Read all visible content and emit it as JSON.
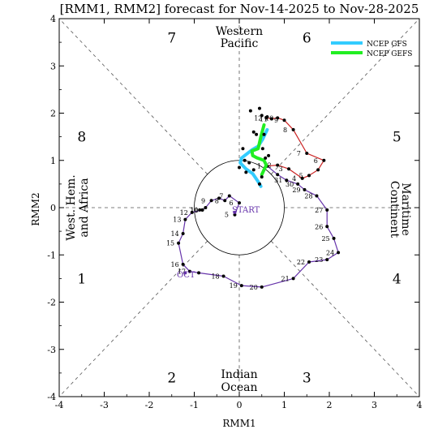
{
  "chart_data": {
    "type": "scatter",
    "title": "[RMM1, RMM2] forecast for Nov-14-2025 to Nov-28-2025",
    "xlabel": "RMM1",
    "ylabel": "RMM2",
    "xlim": [
      -4,
      4
    ],
    "ylim": [
      -4,
      4
    ],
    "xticks": [
      "-4",
      "-3",
      "-2",
      "-1",
      "0",
      "1",
      "2",
      "3",
      "4"
    ],
    "yticks": [
      "-4",
      "-3",
      "-2",
      "-1",
      "0",
      "1",
      "2",
      "3",
      "4"
    ],
    "grid": false,
    "legend_position": "top-right",
    "legend": [
      {
        "name": "NCEP GFS",
        "color": "#33ccff"
      },
      {
        "name": "NCEP GEFS",
        "color": "#22ee22"
      }
    ],
    "phase_labels": [
      {
        "label": "1",
        "x": -3.5,
        "y": -1.5
      },
      {
        "label": "2",
        "x": -1.5,
        "y": -3.6
      },
      {
        "label": "3",
        "x": 1.5,
        "y": -3.6
      },
      {
        "label": "4",
        "x": 3.5,
        "y": -1.5
      },
      {
        "label": "5",
        "x": 3.5,
        "y": 1.5
      },
      {
        "label": "6",
        "x": 1.5,
        "y": 3.6
      },
      {
        "label": "7",
        "x": -1.5,
        "y": 3.6
      },
      {
        "label": "8",
        "x": -3.5,
        "y": 1.5
      }
    ],
    "region_labels": {
      "top": [
        "Western",
        "Pacific"
      ],
      "bottom": [
        "Indian",
        "Ocean"
      ],
      "left": [
        "West. Hem.",
        "and Africa"
      ],
      "right": [
        "Maritime",
        "Continent"
      ]
    },
    "start_label": "START",
    "oct_label": "OCT",
    "series": [
      {
        "name": "observed-purple",
        "color": "#6633aa",
        "points": [
          [
            -0.1,
            -0.15
          ],
          [
            0.0,
            0.1
          ],
          [
            -0.22,
            0.25
          ],
          [
            -0.32,
            0.15
          ],
          [
            -0.45,
            0.2
          ],
          [
            -0.62,
            0.15
          ],
          [
            -0.75,
            0.0
          ],
          [
            -0.82,
            -0.05
          ],
          [
            -0.88,
            -0.05
          ],
          [
            -0.82,
            -0.05
          ],
          [
            -1.05,
            -0.1
          ],
          [
            -1.2,
            -0.25
          ],
          [
            -1.25,
            -0.55
          ],
          [
            -1.35,
            -0.75
          ],
          [
            -1.25,
            -1.2
          ],
          [
            -1.1,
            -1.35
          ],
          [
            -0.9,
            -1.38
          ],
          [
            -0.35,
            -1.45
          ],
          [
            0.05,
            -1.65
          ],
          [
            0.5,
            -1.68
          ],
          [
            1.2,
            -1.5
          ],
          [
            1.55,
            -1.15
          ],
          [
            1.95,
            -1.1
          ],
          [
            2.2,
            -0.95
          ],
          [
            2.1,
            -0.65
          ],
          [
            1.95,
            -0.4
          ],
          [
            1.95,
            -0.05
          ],
          [
            1.72,
            0.25
          ],
          [
            1.45,
            0.38
          ],
          [
            1.3,
            0.5
          ],
          [
            1.05,
            0.58
          ],
          [
            0.85,
            0.7
          ],
          [
            0.62,
            0.88
          ]
        ],
        "labels": [
          {
            "t": "5",
            "i": 0
          },
          {
            "t": "6",
            "i": 1
          },
          {
            "t": "7",
            "i": 2
          },
          {
            "t": "8",
            "i": 3
          },
          {
            "t": "9",
            "i": 5
          },
          {
            "t": "10",
            "i": 7
          },
          {
            "t": "11",
            "i": 9
          },
          {
            "t": "12",
            "i": 10
          },
          {
            "t": "13",
            "i": 11
          },
          {
            "t": "14",
            "i": 12
          },
          {
            "t": "15",
            "i": 13
          },
          {
            "t": "16",
            "i": 14
          },
          {
            "t": "17",
            "i": 15
          },
          {
            "t": "18",
            "i": 17
          },
          {
            "t": "19",
            "i": 18
          },
          {
            "t": "20",
            "i": 19
          },
          {
            "t": "21",
            "i": 20
          },
          {
            "t": "22",
            "i": 21
          },
          {
            "t": "23",
            "i": 22
          },
          {
            "t": "24",
            "i": 23
          },
          {
            "t": "25",
            "i": 24
          },
          {
            "t": "26",
            "i": 25
          },
          {
            "t": "27",
            "i": 26
          },
          {
            "t": "28",
            "i": 27
          },
          {
            "t": "29",
            "i": 28
          },
          {
            "t": "30",
            "i": 29
          },
          {
            "t": "31",
            "i": 30
          }
        ]
      },
      {
        "name": "observed-red",
        "color": "#cc2222",
        "points": [
          [
            0.62,
            0.88
          ],
          [
            0.85,
            0.9
          ],
          [
            1.1,
            0.82
          ],
          [
            1.4,
            0.62
          ],
          [
            1.55,
            0.68
          ],
          [
            1.75,
            0.8
          ],
          [
            1.88,
            1.0
          ],
          [
            1.5,
            1.15
          ],
          [
            1.2,
            1.65
          ],
          [
            1.0,
            1.85
          ],
          [
            0.85,
            1.9
          ],
          [
            0.72,
            1.88
          ],
          [
            0.6,
            1.9
          ]
        ],
        "labels": [
          {
            "t": "1",
            "i": 0
          },
          {
            "t": "2",
            "i": 1
          },
          {
            "t": "3",
            "i": 2
          },
          {
            "t": "4",
            "i": 3
          },
          {
            "t": "5",
            "i": 4
          },
          {
            "t": "6",
            "i": 6
          },
          {
            "t": "7",
            "i": 7
          },
          {
            "t": "8",
            "i": 8
          },
          {
            "t": "9",
            "i": 9
          },
          {
            "t": "10",
            "i": 10
          },
          {
            "t": "11",
            "i": 11
          },
          {
            "t": "12",
            "i": 12
          }
        ]
      },
      {
        "name": "NCEP GFS",
        "color": "#33ccff",
        "points": [
          [
            0.62,
            1.65
          ],
          [
            0.52,
            1.45
          ],
          [
            0.42,
            1.3
          ],
          [
            0.28,
            1.22
          ],
          [
            0.05,
            1.05
          ],
          [
            0.02,
            0.95
          ],
          [
            0.15,
            0.82
          ],
          [
            0.3,
            0.72
          ],
          [
            0.42,
            0.55
          ],
          [
            0.48,
            0.45
          ]
        ],
        "labels": []
      },
      {
        "name": "NCEP GEFS",
        "color": "#22ee22",
        "points": [
          [
            0.55,
            1.75
          ],
          [
            0.48,
            1.5
          ],
          [
            0.42,
            1.25
          ],
          [
            0.28,
            1.2
          ],
          [
            0.3,
            1.1
          ],
          [
            0.4,
            1.05
          ],
          [
            0.55,
            1.0
          ],
          [
            0.6,
            0.9
          ],
          [
            0.55,
            0.8
          ],
          [
            0.5,
            0.7
          ]
        ],
        "labels": []
      }
    ],
    "ensemble_dots": [
      [
        0.25,
        2.05
      ],
      [
        0.45,
        2.1
      ],
      [
        0.5,
        1.95
      ],
      [
        0.62,
        1.92
      ],
      [
        0.32,
        1.6
      ],
      [
        0.38,
        1.55
      ],
      [
        0.08,
        1.25
      ],
      [
        0.12,
        1.0
      ],
      [
        0.22,
        0.95
      ],
      [
        0.52,
        1.25
      ],
      [
        0.58,
        1.05
      ],
      [
        0.65,
        1.1
      ],
      [
        0.0,
        0.85
      ],
      [
        0.15,
        0.75
      ],
      [
        0.32,
        0.8
      ],
      [
        0.5,
        0.65
      ],
      [
        0.45,
        0.5
      ],
      [
        0.55,
        1.55
      ]
    ],
    "start_point": [
      -0.1,
      -0.1
    ],
    "oct_point": [
      -1.2,
      -1.38
    ],
    "circle_radius": 1
  }
}
